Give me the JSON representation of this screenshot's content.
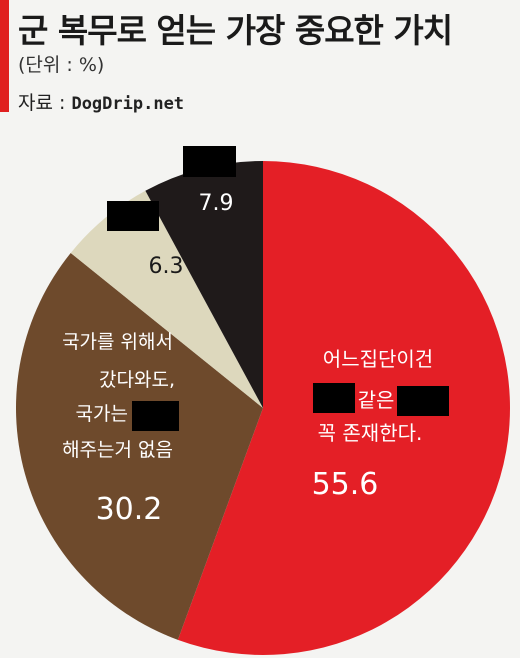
{
  "title": "군 복무로 얻는 가장 중요한 가치",
  "unit": "(단위 : %)",
  "source_label": "자료 :",
  "source_site": "DogDrip.net",
  "chart_data": {
    "type": "pie",
    "slices": [
      {
        "value": 55.6,
        "value_label": "55.6",
        "label_lines": [
          "어느집단이건",
          "같은",
          "꼭 존재한다."
        ],
        "color": "#e41f26"
      },
      {
        "value": 30.2,
        "value_label": "30.2",
        "label_lines": [
          "국가를 위해서",
          "갔다와도,",
          "국가는",
          "해주는거 없음"
        ],
        "color": "#6e4a2c"
      },
      {
        "value": 6.3,
        "value_label": "6.3",
        "label_lines": [],
        "color": "#ddd8bd"
      },
      {
        "value": 7.9,
        "value_label": "7.9",
        "label_lines": [],
        "color": "#1f1a1a"
      }
    ]
  }
}
